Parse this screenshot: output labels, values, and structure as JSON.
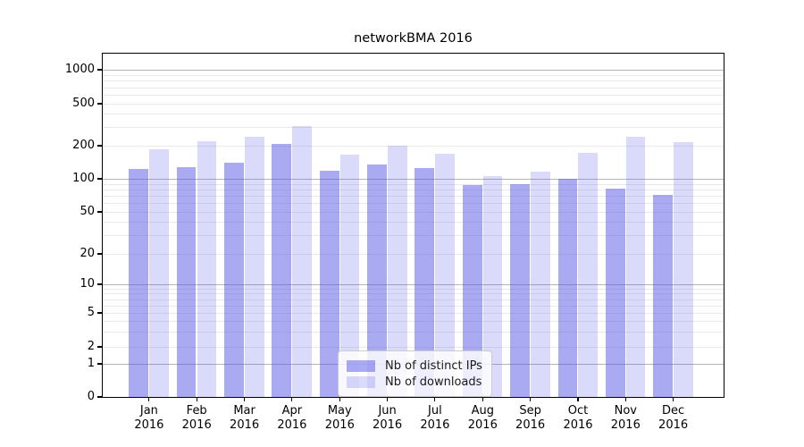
{
  "chart_data": {
    "type": "bar",
    "title": "networkBMA 2016",
    "months": [
      "Jan",
      "Feb",
      "Mar",
      "Apr",
      "May",
      "Jun",
      "Jul",
      "Aug",
      "Sep",
      "Oct",
      "Nov",
      "Dec"
    ],
    "year": "2016",
    "series": [
      {
        "name": "Nb of distinct IPs",
        "color": "rgba(85,85,230,0.50)",
        "color_hex_on_white": "#a9a9f2",
        "values": [
          122,
          128,
          140,
          208,
          118,
          135,
          125,
          88,
          90,
          100,
          82,
          72
        ]
      },
      {
        "name": "Nb of downloads",
        "color": "rgba(85,85,230,0.22)",
        "color_hex_on_white": "#d9d9f9",
        "values": [
          185,
          220,
          245,
          310,
          165,
          200,
          170,
          105,
          117,
          172,
          245,
          215
        ]
      }
    ],
    "yscale": "symlog",
    "yticks": [
      "0",
      "1",
      "2",
      "5",
      "10",
      "20",
      "50",
      "100",
      "200",
      "500",
      "1000"
    ],
    "ylim": [
      0,
      1400
    ],
    "xlabel": "",
    "ylabel": "",
    "grid": "both",
    "legend_position": "lower center"
  }
}
